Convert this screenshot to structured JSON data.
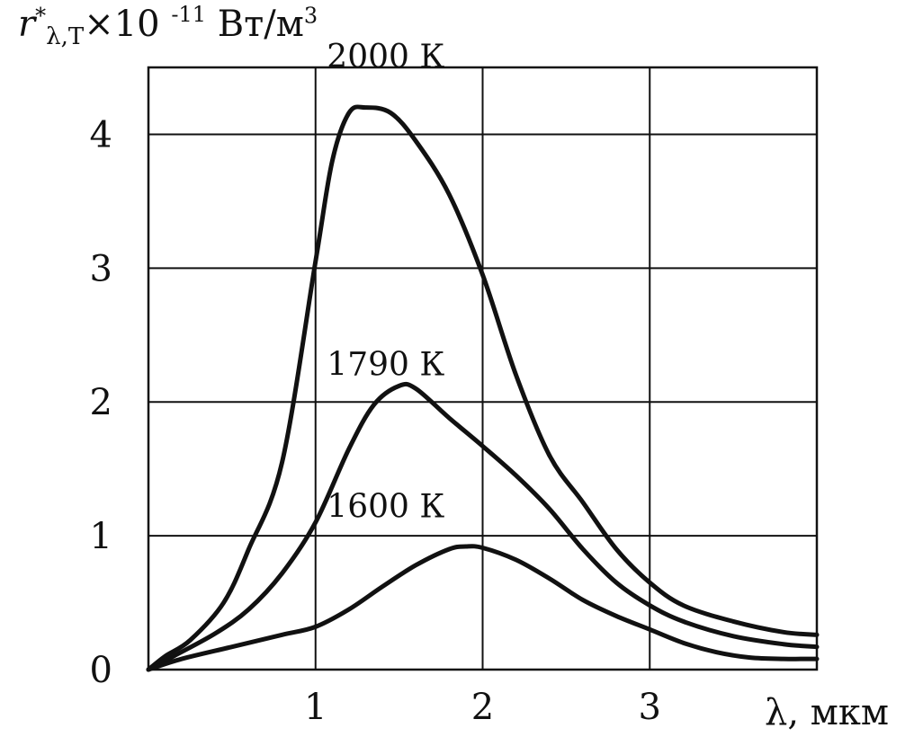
{
  "chart_data": {
    "type": "line",
    "ylabel": {
      "symbol": "r",
      "star": "*",
      "subscript": "λ,T",
      "multiplier": "×10",
      "exponent": "-11",
      "unit": "Вт/м",
      "unit_power": "3"
    },
    "xlabel": "λ, мкм",
    "xlim": [
      0,
      4
    ],
    "ylim": [
      0,
      4.5
    ],
    "grid": true,
    "x_ticks": [
      {
        "value": 1,
        "label": "1"
      },
      {
        "value": 2,
        "label": "2"
      },
      {
        "value": 3,
        "label": "3"
      }
    ],
    "y_ticks": [
      {
        "value": 0,
        "label": "0"
      },
      {
        "value": 1,
        "label": "1"
      },
      {
        "value": 2,
        "label": "2"
      },
      {
        "value": 3,
        "label": "3"
      },
      {
        "value": 4,
        "label": "4"
      }
    ],
    "series": [
      {
        "name": "2000 К",
        "label_at": {
          "x": 1.42,
          "y": 4.5
        },
        "points": [
          [
            0,
            0
          ],
          [
            0.1,
            0.1
          ],
          [
            0.25,
            0.22
          ],
          [
            0.45,
            0.5
          ],
          [
            0.6,
            0.9
          ],
          [
            0.8,
            1.55
          ],
          [
            1.0,
            3.05
          ],
          [
            1.1,
            3.8
          ],
          [
            1.2,
            4.16
          ],
          [
            1.3,
            4.2
          ],
          [
            1.45,
            4.16
          ],
          [
            1.6,
            3.95
          ],
          [
            1.8,
            3.55
          ],
          [
            2.0,
            2.95
          ],
          [
            2.2,
            2.2
          ],
          [
            2.4,
            1.6
          ],
          [
            2.6,
            1.25
          ],
          [
            2.8,
            0.9
          ],
          [
            3.0,
            0.65
          ],
          [
            3.2,
            0.48
          ],
          [
            3.5,
            0.36
          ],
          [
            3.8,
            0.28
          ],
          [
            4.0,
            0.26
          ]
        ]
      },
      {
        "name": "1790 К",
        "label_at": {
          "x": 1.42,
          "y": 2.2
        },
        "points": [
          [
            0,
            0
          ],
          [
            0.15,
            0.1
          ],
          [
            0.4,
            0.27
          ],
          [
            0.6,
            0.45
          ],
          [
            0.8,
            0.72
          ],
          [
            1.0,
            1.1
          ],
          [
            1.2,
            1.65
          ],
          [
            1.35,
            1.98
          ],
          [
            1.5,
            2.12
          ],
          [
            1.6,
            2.1
          ],
          [
            1.8,
            1.88
          ],
          [
            2.0,
            1.67
          ],
          [
            2.2,
            1.45
          ],
          [
            2.4,
            1.2
          ],
          [
            2.6,
            0.9
          ],
          [
            2.8,
            0.65
          ],
          [
            3.0,
            0.48
          ],
          [
            3.2,
            0.36
          ],
          [
            3.5,
            0.25
          ],
          [
            3.8,
            0.19
          ],
          [
            4.0,
            0.17
          ]
        ]
      },
      {
        "name": "1600 К",
        "label_at": {
          "x": 1.42,
          "y": 1.14
        },
        "points": [
          [
            0,
            0
          ],
          [
            0.2,
            0.08
          ],
          [
            0.5,
            0.17
          ],
          [
            0.8,
            0.26
          ],
          [
            1.0,
            0.32
          ],
          [
            1.2,
            0.45
          ],
          [
            1.4,
            0.62
          ],
          [
            1.6,
            0.78
          ],
          [
            1.8,
            0.9
          ],
          [
            1.9,
            0.92
          ],
          [
            2.0,
            0.91
          ],
          [
            2.2,
            0.82
          ],
          [
            2.4,
            0.68
          ],
          [
            2.6,
            0.52
          ],
          [
            2.8,
            0.4
          ],
          [
            3.0,
            0.3
          ],
          [
            3.2,
            0.2
          ],
          [
            3.4,
            0.13
          ],
          [
            3.6,
            0.09
          ],
          [
            3.8,
            0.08
          ],
          [
            4.0,
            0.08
          ]
        ]
      }
    ]
  }
}
